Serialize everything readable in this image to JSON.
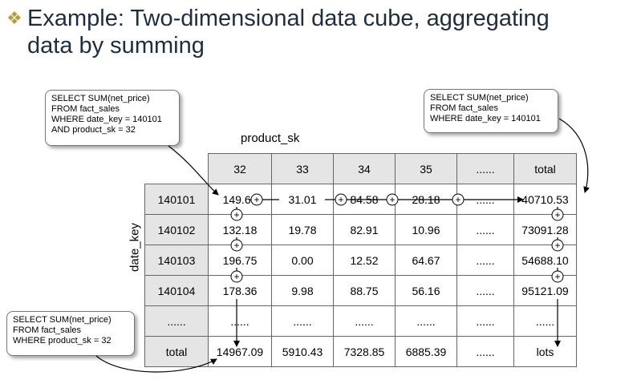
{
  "title": {
    "line1": "Example: Two-dimensional data cube, aggregating",
    "line2": "data by summing"
  },
  "callouts": {
    "cell": [
      "SELECT SUM(net_price)",
      "FROM fact_sales",
      "WHERE date_key = 140101",
      "AND product_sk = 32"
    ],
    "row_total": [
      "SELECT SUM(net_price)",
      "FROM fact_sales",
      "WHERE date_key = 140101"
    ],
    "col_total": [
      "SELECT SUM(net_price)",
      "FROM fact_sales",
      "WHERE product_sk = 32"
    ]
  },
  "axes": {
    "columns": "product_sk",
    "rows": "date_key"
  },
  "table": {
    "header": [
      "32",
      "33",
      "34",
      "35",
      "......",
      "total"
    ],
    "rows": [
      {
        "key": "140101",
        "cells": [
          "149.60",
          "31.01",
          "84.58",
          "28.18",
          "......",
          "40710.53"
        ]
      },
      {
        "key": "140102",
        "cells": [
          "132.18",
          "19.78",
          "82.91",
          "10.96",
          "......",
          "73091.28"
        ]
      },
      {
        "key": "140103",
        "cells": [
          "196.75",
          "0.00",
          "12.52",
          "64.67",
          "......",
          "54688.10"
        ]
      },
      {
        "key": "140104",
        "cells": [
          "178.36",
          "9.98",
          "88.75",
          "56.16",
          "......",
          "95121.09"
        ]
      },
      {
        "key": "......",
        "cells": [
          "......",
          "......",
          "......",
          "......",
          "......",
          "......"
        ]
      },
      {
        "key": "total",
        "cells": [
          "14967.09",
          "5910.43",
          "7328.85",
          "6885.39",
          "......",
          "lots"
        ]
      }
    ]
  },
  "plus_symbol": "+"
}
